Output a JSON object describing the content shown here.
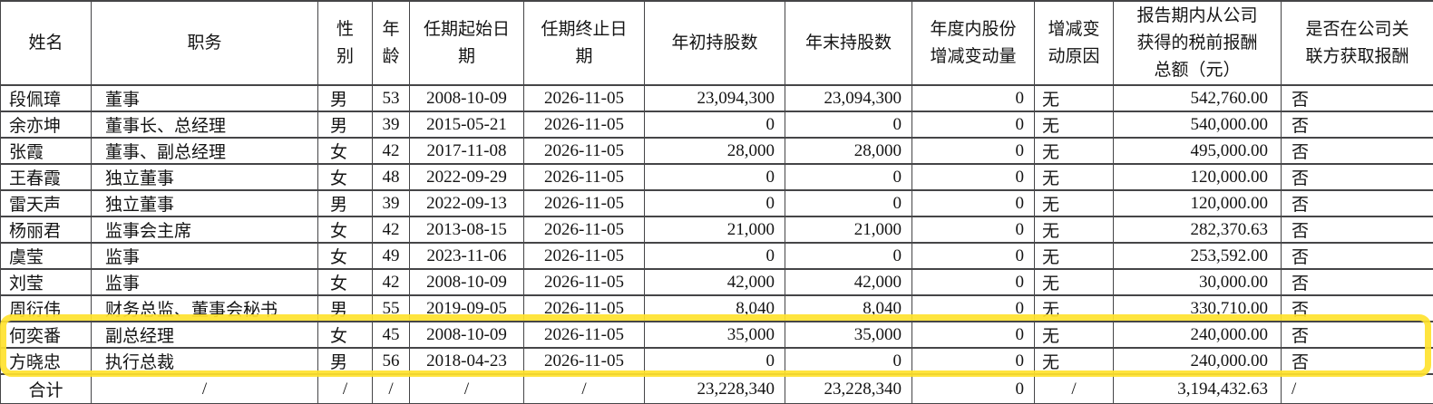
{
  "document": {
    "kind": "executives-compensation-table",
    "annotation": {
      "shape": "rounded-rectangle-outline",
      "color": "#ffe22e",
      "highlighted_names": [
        "何奕番",
        "方晓忠"
      ]
    }
  },
  "table": {
    "headers": [
      "姓名",
      "职务",
      "性别",
      "年龄",
      "任期起始日期",
      "任期终止日期",
      "年初持股数",
      "年末持股数",
      "年度内股份增减变动量",
      "增减变动原因",
      "报告期内从公司获得的税前报酬总额（元）",
      "是否在公司关联方获取报酬"
    ],
    "rows": [
      [
        "段佩璋",
        "董事",
        "男",
        "53",
        "2008-10-09",
        "2026-11-05",
        "23,094,300",
        "23,094,300",
        "0",
        "无",
        "542,760.00",
        "否"
      ],
      [
        "余亦坤",
        "董事长、总经理",
        "男",
        "39",
        "2015-05-21",
        "2026-11-05",
        "0",
        "0",
        "0",
        "无",
        "540,000.00",
        "否"
      ],
      [
        "张霞",
        "董事、副总经理",
        "女",
        "42",
        "2017-11-08",
        "2026-11-05",
        "28,000",
        "28,000",
        "0",
        "无",
        "495,000.00",
        "否"
      ],
      [
        "王春霞",
        "独立董事",
        "女",
        "48",
        "2022-09-29",
        "2026-11-05",
        "0",
        "0",
        "0",
        "无",
        "120,000.00",
        "否"
      ],
      [
        "雷天声",
        "独立董事",
        "男",
        "39",
        "2022-09-13",
        "2026-11-05",
        "0",
        "0",
        "0",
        "无",
        "120,000.00",
        "否"
      ],
      [
        "杨丽君",
        "监事会主席",
        "女",
        "42",
        "2013-08-15",
        "2026-11-05",
        "21,000",
        "21,000",
        "0",
        "无",
        "282,370.63",
        "否"
      ],
      [
        "虞莹",
        "监事",
        "女",
        "49",
        "2023-11-06",
        "2026-11-05",
        "0",
        "0",
        "0",
        "无",
        "253,592.00",
        "否"
      ],
      [
        "刘莹",
        "监事",
        "女",
        "42",
        "2008-10-09",
        "2026-11-05",
        "42,000",
        "42,000",
        "0",
        "无",
        "30,000.00",
        "否"
      ],
      [
        "周衍伟",
        "财务总监、董事会秘书",
        "男",
        "55",
        "2019-09-05",
        "2026-11-05",
        "8,040",
        "8,040",
        "0",
        "无",
        "330,710.00",
        "否"
      ],
      [
        "何奕番",
        "副总经理",
        "女",
        "45",
        "2008-10-09",
        "2026-11-05",
        "35,000",
        "35,000",
        "0",
        "无",
        "240,000.00",
        "否"
      ],
      [
        "方晓忠",
        "执行总裁",
        "男",
        "56",
        "2018-04-23",
        "2026-11-05",
        "0",
        "0",
        "0",
        "无",
        "240,000.00",
        "否"
      ]
    ],
    "highlight_row_indices": [
      9,
      10
    ],
    "total_row": [
      "合计",
      "/",
      "/",
      "/",
      "/",
      "/",
      "23,228,340",
      "23,228,340",
      "0",
      "/",
      "3,194,432.63",
      "/"
    ]
  }
}
